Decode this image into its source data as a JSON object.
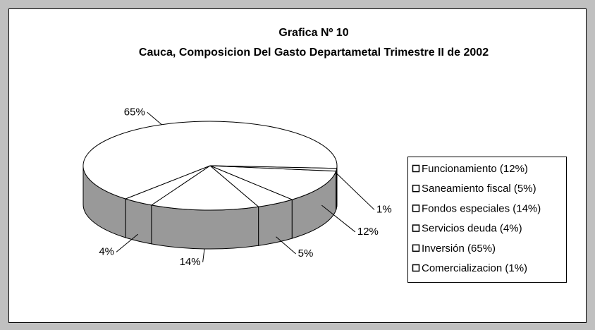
{
  "chart_data": {
    "type": "pie3d",
    "title": "Grafica Nº 10",
    "subtitle": "Cauca, Composicion Del Gasto Departametal Trimestre II de 2002",
    "categories": [
      "Funcionamiento (12%)",
      "Saneamiento fiscal (5%)",
      "Fondos especiales (14%)",
      "Servicios deuda (4%)",
      "Inversión (65%)",
      "Comercializacion (1%)"
    ],
    "values": [
      12,
      5,
      14,
      4,
      65,
      1
    ],
    "value_labels": [
      "12%",
      "5%",
      "14%",
      "4%",
      "65%",
      "1%"
    ],
    "colors": [
      "#ffffff",
      "#ffffff",
      "#ffffff",
      "#ffffff",
      "#ffffff",
      "#ffffff"
    ],
    "side_color": "#999999",
    "legend": "right"
  }
}
